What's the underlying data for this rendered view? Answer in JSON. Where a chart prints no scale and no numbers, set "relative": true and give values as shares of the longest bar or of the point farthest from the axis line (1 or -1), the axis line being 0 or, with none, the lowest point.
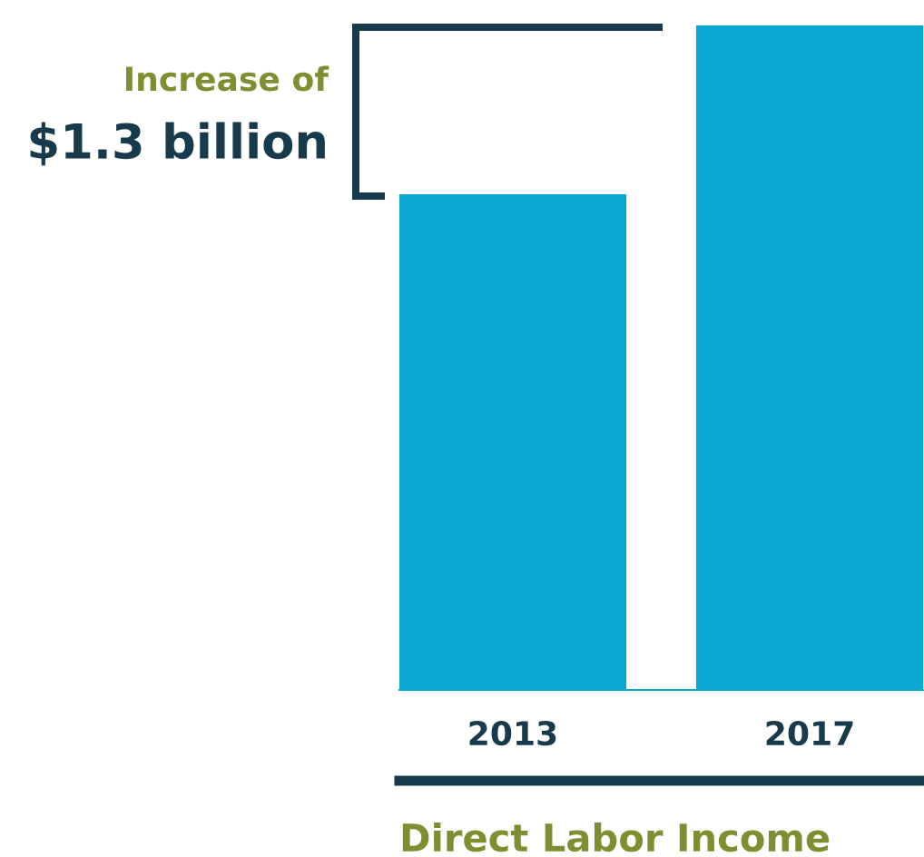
{
  "chart_data": {
    "type": "bar",
    "relative": true,
    "categories": [
      "2013",
      "2017"
    ],
    "values": [
      0.746,
      1
    ],
    "color": "#09a7d1",
    "xlabel": "Direct Labor Income",
    "annotations": [
      "Increase of",
      "$1.3 billion"
    ],
    "grid": false,
    "legend": false
  }
}
